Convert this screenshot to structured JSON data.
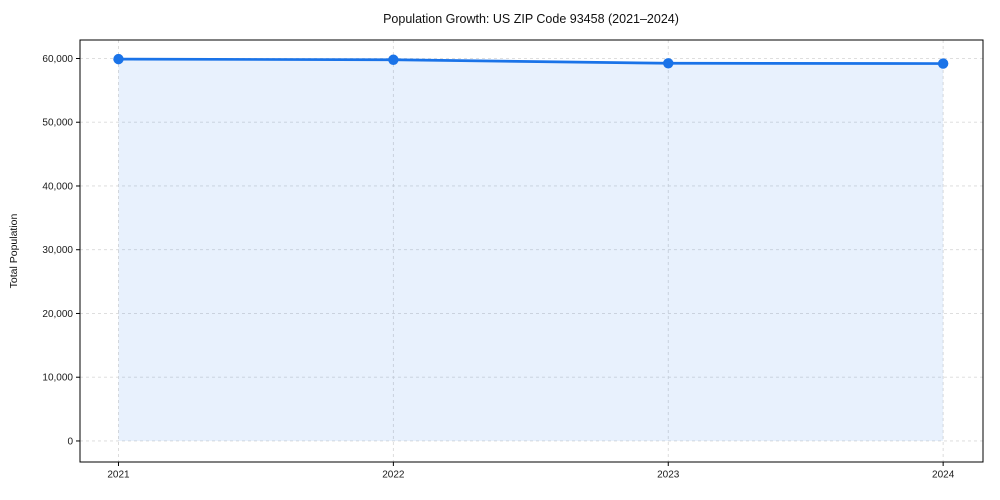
{
  "figure": {
    "background": "#ffffff"
  },
  "chart_data": {
    "type": "line",
    "title": "Population Growth: US ZIP Code 93458 (2021–2024)",
    "xlabel": "",
    "ylabel": "Total Population",
    "x": [
      2021,
      2022,
      2023,
      2024
    ],
    "x_tick_labels": [
      "2021",
      "2022",
      "2023",
      "2024"
    ],
    "series": [
      {
        "name": "Total Population",
        "values": [
          59900,
          59800,
          59250,
          59200
        ]
      }
    ],
    "y_ticks": [
      0,
      10000,
      20000,
      30000,
      40000,
      50000,
      60000
    ],
    "y_tick_labels": [
      "0",
      "10,000",
      "20,000",
      "30,000",
      "40,000",
      "50,000",
      "60,000"
    ],
    "xlim": [
      2020.86,
      2024.145
    ],
    "ylim": [
      -3300,
      62900
    ],
    "grid": true,
    "grid_style": "dashed",
    "legend_position": "none",
    "area_fill": true,
    "marker": "circle",
    "colors": {
      "line": "#1a73e8",
      "marker": "#1a73e8",
      "fill": "rgba(26,115,232,0.10)",
      "grid": "#d9d9d9",
      "spine": "#000000",
      "text": "#1a1a1a"
    }
  }
}
